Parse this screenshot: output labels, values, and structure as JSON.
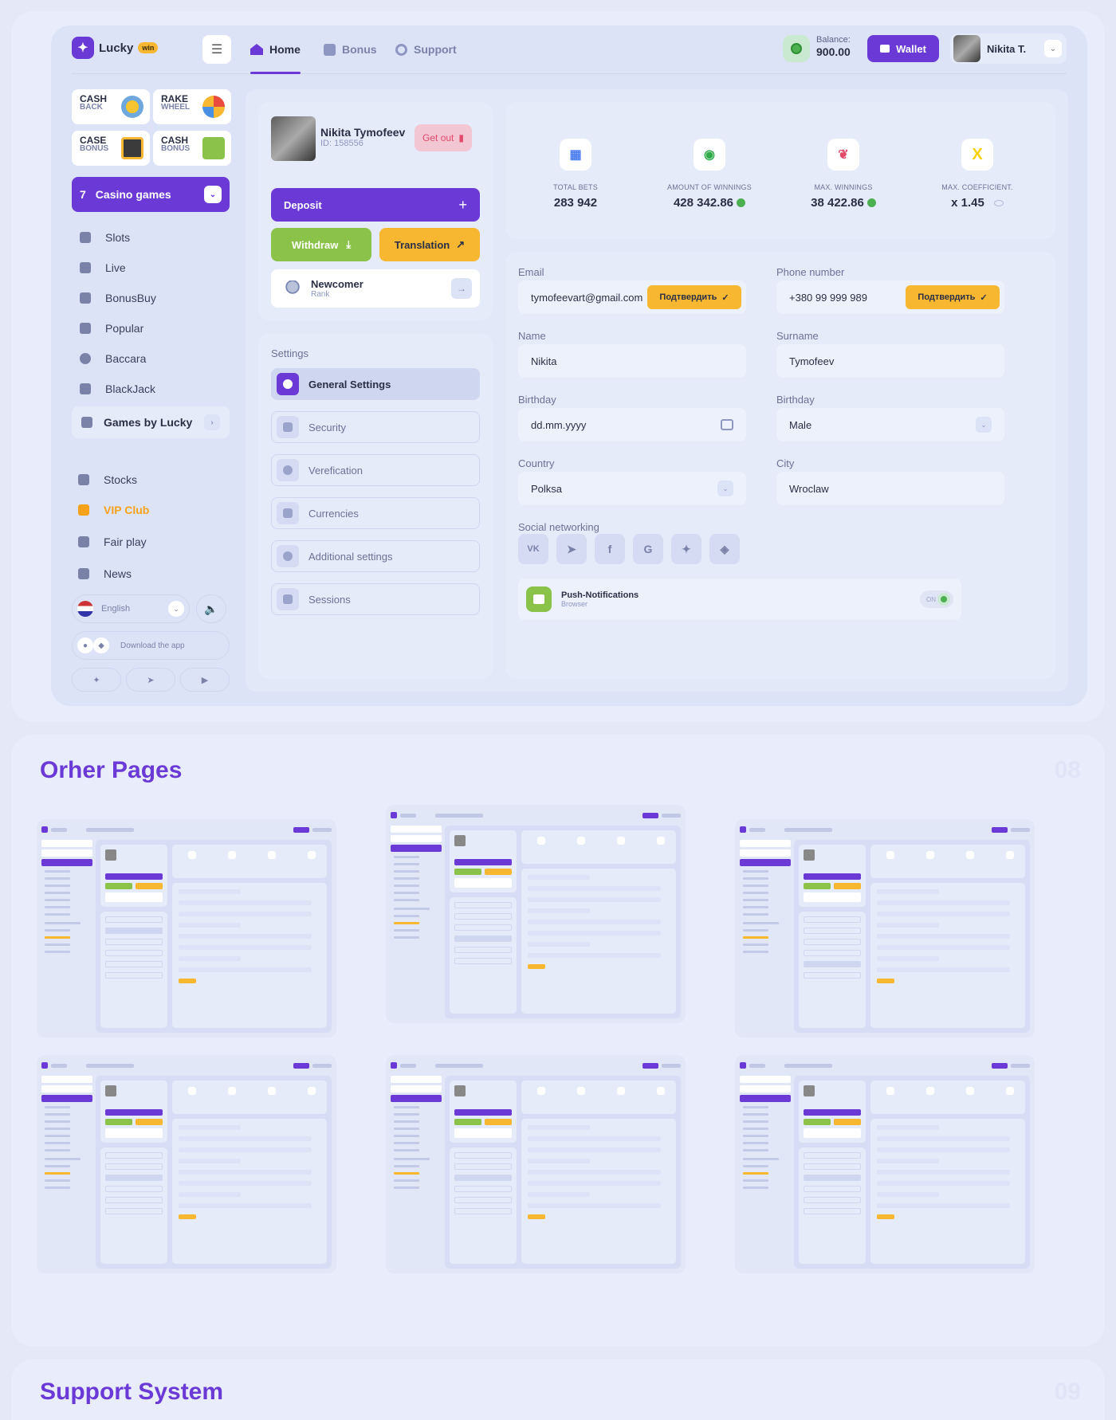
{
  "brand": {
    "name": "Lucky",
    "badge": "win"
  },
  "nav": {
    "tabs": [
      {
        "label": "Home"
      },
      {
        "label": "Bonus"
      },
      {
        "label": "Support"
      }
    ]
  },
  "balance": {
    "label": "Balance:",
    "value": "900.00"
  },
  "wallet": {
    "label": "Wallet"
  },
  "user": {
    "name": "Nikita T."
  },
  "side_cards": [
    {
      "line1": "CASH",
      "line2": "BACK"
    },
    {
      "line1": "RAKE",
      "line2": "WHEEL"
    },
    {
      "line1": "CASE",
      "line2": "BONUS"
    },
    {
      "line1": "CASH",
      "line2": "BONUS"
    }
  ],
  "casino": {
    "number": "7",
    "label": "Casino games"
  },
  "menu": [
    {
      "label": "Slots",
      "icon": "slots-icon"
    },
    {
      "label": "Live",
      "icon": "live-icon"
    },
    {
      "label": "BonusBuy",
      "icon": "bonusbuy-icon"
    },
    {
      "label": "Popular",
      "icon": "star-icon"
    },
    {
      "label": "Baccara",
      "icon": "chip-icon"
    },
    {
      "label": "BlackJack",
      "icon": "cards-icon"
    }
  ],
  "games_by_lucky": "Games by Lucky",
  "menu2": [
    {
      "label": "Stocks",
      "icon": "gift-icon"
    },
    {
      "label": "VIP Club",
      "icon": "crown-icon"
    },
    {
      "label": "Fair play",
      "icon": "shield-icon"
    },
    {
      "label": "News",
      "icon": "news-icon"
    }
  ],
  "language": "English",
  "download": "Download the app",
  "profile": {
    "name": "Nikita Tymofeev",
    "id": "ID: 158556",
    "getout": "Get out"
  },
  "actions": {
    "deposit": "Deposit",
    "withdraw": "Withdraw",
    "translation": "Translation"
  },
  "rank": {
    "name": "Newcomer",
    "sub": "Rank"
  },
  "settings": {
    "title": "Settings",
    "items": [
      {
        "label": "General Settings"
      },
      {
        "label": "Security"
      },
      {
        "label": "Verefication"
      },
      {
        "label": "Currencies"
      },
      {
        "label": "Additional settings"
      },
      {
        "label": "Sessions"
      }
    ]
  },
  "stats": [
    {
      "label": "TOTAL BETS",
      "value": "283 942",
      "icon": "dice-icon"
    },
    {
      "label": "AMOUNT OF WINNINGS",
      "value": "428 342.86",
      "icon": "chip-icon"
    },
    {
      "label": "MAX. WINNINGS",
      "value": "38 422.86",
      "icon": "laurel-icon"
    },
    {
      "label": "MAX. COEFFICIENT.",
      "value": "x 1.45",
      "icon": "x-icon",
      "x": "X"
    }
  ],
  "form": {
    "email_label": "Email",
    "email": "tymofeevart@gmail.com",
    "phone_label": "Phone number",
    "phone": "+380 99 999 989",
    "confirm": "Подтвердить",
    "name_label": "Name",
    "name": "Nikita",
    "surname_label": "Surname",
    "surname": "Tymofeev",
    "birthday_label": "Birthday",
    "birthday": "dd.mm.yyyy",
    "gender_label": "Birthday",
    "gender": "Male",
    "country_label": "Country",
    "country": "Polksa",
    "city_label": "City",
    "city": "Wroclaw",
    "social_label": "Social networking",
    "socials": [
      "VK",
      "Telegram",
      "Facebook",
      "G",
      "Twitter",
      "Binance"
    ],
    "push_title": "Push-Notifications",
    "push_sub": "Browser",
    "push_state": "ON"
  },
  "sections": {
    "other_title": "Orher Pages",
    "other_num": "08",
    "support_title": "Support System",
    "support_num": "09"
  }
}
